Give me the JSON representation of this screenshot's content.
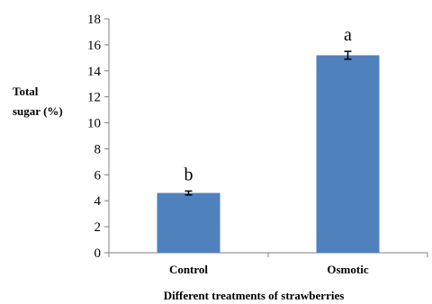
{
  "chart_data": {
    "type": "bar",
    "title": "",
    "xlabel": "Different treatments of strawberries",
    "ylabel_lines": [
      "Total",
      "sugar (%)"
    ],
    "categories": [
      "Control",
      "Osmotic"
    ],
    "values": [
      4.6,
      15.2
    ],
    "error": [
      0.15,
      0.3
    ],
    "significance_labels": [
      "b",
      "a"
    ],
    "ylim": [
      0,
      18
    ],
    "yticks": [
      0,
      2,
      4,
      6,
      8,
      10,
      12,
      14,
      16,
      18
    ],
    "grid": false,
    "legend": "none",
    "bar_color": "#4F81BD"
  }
}
